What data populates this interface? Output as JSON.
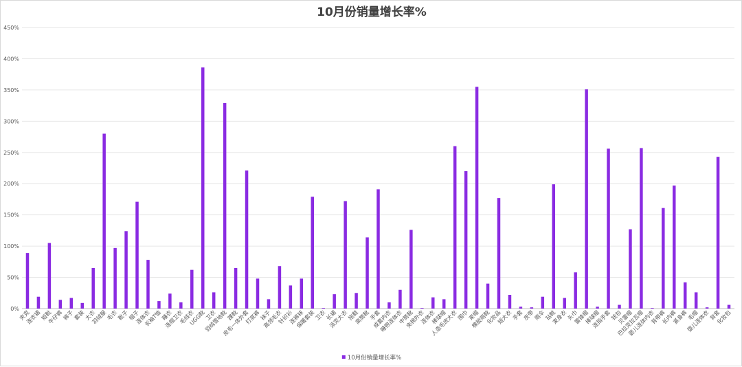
{
  "chart_data": {
    "type": "bar",
    "title": "10月份销量增长率%",
    "xlabel": "",
    "ylabel": "",
    "ylim": [
      0,
      450
    ],
    "yticks": [
      "0%",
      "50%",
      "100%",
      "150%",
      "200%",
      "250%",
      "300%",
      "350%",
      "400%",
      "450%"
    ],
    "grid": true,
    "legend_position": "bottom",
    "bar_color": "#8a2be2",
    "categories": [
      "夹克",
      "连衣裙",
      "短靴",
      "牛仔裤",
      "裤子",
      "套装",
      "大衣",
      "羽绒服",
      "毛衣",
      "靴子",
      "帽子",
      "连体衣",
      "长袖T恤",
      "睡衣",
      "连帽卫衣",
      "毛线衣",
      "UGG靴",
      "卫衣",
      "羽绒雪地靴",
      "踝靴",
      "皮毛一体外套",
      "打底裤",
      "袜子",
      "高领毛衣",
      "针织衫",
      "连裤袜",
      "保暖套装",
      "卫衣",
      "长裙",
      "派克大衣",
      "拖鞋",
      "高筒靴",
      "手套",
      "成套内衣",
      "睡袍连体衣",
      "中筒靴",
      "夹棉外衣",
      "连体衣",
      "棒球帽",
      "人造毛皮大衣",
      "围巾",
      "束帽",
      "橡胶雨靴",
      "化妆品",
      "短大衣",
      "手套",
      "皮带",
      "雨伞",
      "钻靴",
      "束身衣",
      "头巾",
      "雷锋帽",
      "棒球帽",
      "连指手套",
      "钱包",
      "贝雷帽",
      "巴拉克拉瓦帽",
      "婴儿连体内衣",
      "背带裤",
      "长内裤",
      "紧身裤",
      "毛帽",
      "婴儿连体衣",
      "背套",
      "化妆包"
    ],
    "series": [
      {
        "name": "10月份销量增长率%",
        "values": [
          89,
          19,
          105,
          14,
          17,
          9,
          65,
          280,
          97,
          124,
          171,
          78,
          12,
          24,
          10,
          62,
          386,
          26,
          329,
          65,
          221,
          48,
          15,
          68,
          37,
          48,
          179,
          1,
          23,
          172,
          25,
          114,
          191,
          10,
          30,
          126,
          1,
          18,
          15,
          260,
          220,
          355,
          40,
          177,
          22,
          3,
          2,
          19,
          199,
          17,
          58,
          351,
          3,
          256,
          6,
          127,
          257,
          1,
          161,
          197,
          42,
          26,
          2,
          243,
          6
        ]
      }
    ]
  }
}
